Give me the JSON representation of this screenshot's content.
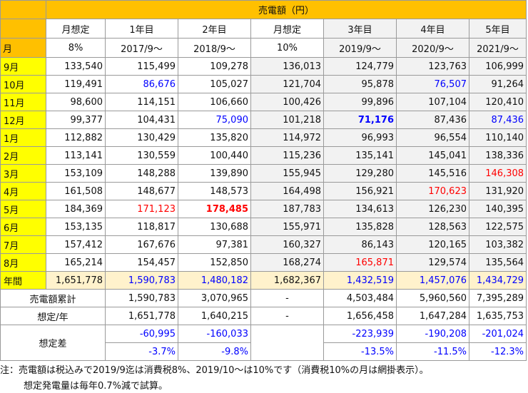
{
  "header": {
    "title": "売電額（円）",
    "month_label": "月",
    "columns": [
      {
        "top": "月想定",
        "bottom": "8%"
      },
      {
        "top": "1年目",
        "bottom": "2017/9～"
      },
      {
        "top": "2年目",
        "bottom": "2018/9～"
      },
      {
        "top": "月想定",
        "bottom": "10%"
      },
      {
        "top": "3年目",
        "bottom": "2019/9～"
      },
      {
        "top": "4年目",
        "bottom": "2020/9～"
      },
      {
        "top": "5年目",
        "bottom": "2021/9～"
      }
    ]
  },
  "rows": [
    {
      "month": "9月",
      "values": [
        "133,540",
        "115,499",
        "109,278",
        "136,013",
        "124,779",
        "123,763",
        "106,999"
      ],
      "styles": [
        "",
        "",
        "",
        "",
        "",
        "",
        ""
      ]
    },
    {
      "month": "10月",
      "values": [
        "119,491",
        "86,676",
        "105,027",
        "121,704",
        "95,878",
        "76,507",
        "91,264"
      ],
      "styles": [
        "",
        "blue",
        "",
        "",
        "",
        "blue",
        ""
      ]
    },
    {
      "month": "11月",
      "values": [
        "98,600",
        "114,151",
        "106,660",
        "100,426",
        "99,896",
        "107,104",
        "120,410"
      ],
      "styles": [
        "",
        "",
        "",
        "",
        "",
        "",
        ""
      ]
    },
    {
      "month": "12月",
      "values": [
        "99,377",
        "104,431",
        "75,090",
        "101,218",
        "71,176",
        "87,436",
        "87,436"
      ],
      "styles": [
        "",
        "",
        "blue",
        "",
        "blue bold",
        "",
        "blue"
      ]
    },
    {
      "month": "1月",
      "values": [
        "112,882",
        "130,429",
        "135,820",
        "114,972",
        "96,993",
        "96,554",
        "110,140"
      ],
      "styles": [
        "",
        "",
        "",
        "",
        "",
        "",
        ""
      ]
    },
    {
      "month": "2月",
      "values": [
        "113,141",
        "130,559",
        "100,440",
        "115,236",
        "135,141",
        "145,041",
        "138,336"
      ],
      "styles": [
        "",
        "",
        "",
        "",
        "",
        "",
        ""
      ]
    },
    {
      "month": "3月",
      "values": [
        "153,109",
        "148,288",
        "139,890",
        "155,945",
        "129,280",
        "145,516",
        "146,308"
      ],
      "styles": [
        "",
        "",
        "",
        "",
        "",
        "",
        "red"
      ]
    },
    {
      "month": "4月",
      "values": [
        "161,508",
        "148,677",
        "148,573",
        "164,498",
        "156,921",
        "170,623",
        "131,920"
      ],
      "styles": [
        "",
        "",
        "",
        "",
        "",
        "red",
        ""
      ]
    },
    {
      "month": "5月",
      "values": [
        "184,369",
        "171,123",
        "178,485",
        "187,783",
        "134,613",
        "126,230",
        "140,395"
      ],
      "styles": [
        "",
        "red",
        "red bold",
        "",
        "",
        "",
        ""
      ]
    },
    {
      "month": "6月",
      "values": [
        "153,135",
        "118,817",
        "130,688",
        "155,971",
        "135,828",
        "128,563",
        "122,575"
      ],
      "styles": [
        "",
        "",
        "",
        "",
        "",
        "",
        ""
      ]
    },
    {
      "month": "7月",
      "values": [
        "157,412",
        "167,676",
        "97,381",
        "160,327",
        "86,143",
        "120,165",
        "103,382"
      ],
      "styles": [
        "",
        "",
        "",
        "",
        "",
        "",
        ""
      ]
    },
    {
      "month": "8月",
      "values": [
        "165,214",
        "154,457",
        "152,850",
        "168,274",
        "165,871",
        "129,574",
        "135,564"
      ],
      "styles": [
        "",
        "",
        "",
        "",
        "red",
        "",
        ""
      ]
    }
  ],
  "annual": {
    "label": "年間",
    "values": [
      "1,651,778",
      "1,590,783",
      "1,480,182",
      "1,682,367",
      "1,432,519",
      "1,457,076",
      "1,434,729"
    ]
  },
  "cumulative": {
    "label": "売電額累計",
    "values": [
      "1,590,783",
      "3,070,965",
      "-",
      "4,503,484",
      "5,960,560",
      "7,395,289"
    ]
  },
  "expected": {
    "label": "想定/年",
    "values": [
      "1,651,778",
      "1,640,215",
      "-",
      "1,656,458",
      "1,647,284",
      "1,635,753"
    ]
  },
  "diff": {
    "label": "想定差",
    "amounts": [
      "-60,995",
      "-160,033",
      "",
      "-223,939",
      "-190,208",
      "-201,024"
    ],
    "percents": [
      "-3.7%",
      "-9.8%",
      "",
      "-13.5%",
      "-11.5%",
      "-12.3%"
    ]
  },
  "notes": [
    "注：売電額は税込みで2019/9迄は消費税8%、2019/10～は10%です（消費税10%の月は網掛表示）。",
    "想定発電量は毎年0.7%減で試算。"
  ]
}
